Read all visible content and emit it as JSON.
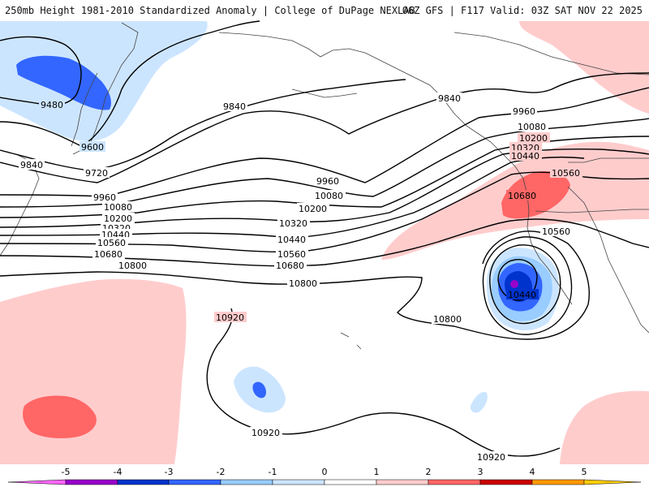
{
  "header": {
    "title": "250mb Height 1981-2010 Standardized Anomaly | College of DuPage NEXLAB",
    "run_info": "06Z GFS | F117 Valid: 03Z SAT NOV 22 2025"
  },
  "colorbar": {
    "ticks": [
      "-5",
      "-4",
      "-3",
      "-2",
      "-1",
      "0",
      "1",
      "2",
      "3",
      "4",
      "5"
    ],
    "colors": [
      "#ff66ff",
      "#9900cc",
      "#0033cc",
      "#3366ff",
      "#99ccff",
      "#cce5ff",
      "#ffffff",
      "#ffcccc",
      "#ff6666",
      "#cc0000",
      "#ff9900",
      "#ffcc00"
    ]
  },
  "contours": {
    "labels": [
      "9480",
      "9600",
      "9720",
      "9840",
      "9840",
      "9840",
      "9960",
      "9960",
      "9960",
      "10080",
      "10080",
      "10080",
      "10200",
      "10200",
      "10200",
      "10320",
      "10320",
      "10320",
      "10440",
      "10440",
      "10440",
      "10440",
      "10560",
      "10560",
      "10560",
      "10560",
      "10680",
      "10680",
      "10680",
      "10800",
      "10800",
      "10800",
      "10920",
      "10920",
      "10920"
    ]
  },
  "colors": {
    "neg1": "#cce5ff",
    "neg2": "#99ccff",
    "neg3": "#3366ff",
    "neg4": "#0033cc",
    "neg5": "#9900cc",
    "pos1": "#ffcccc",
    "pos2": "#ff6666",
    "land": "#444444",
    "contour": "#000000"
  }
}
